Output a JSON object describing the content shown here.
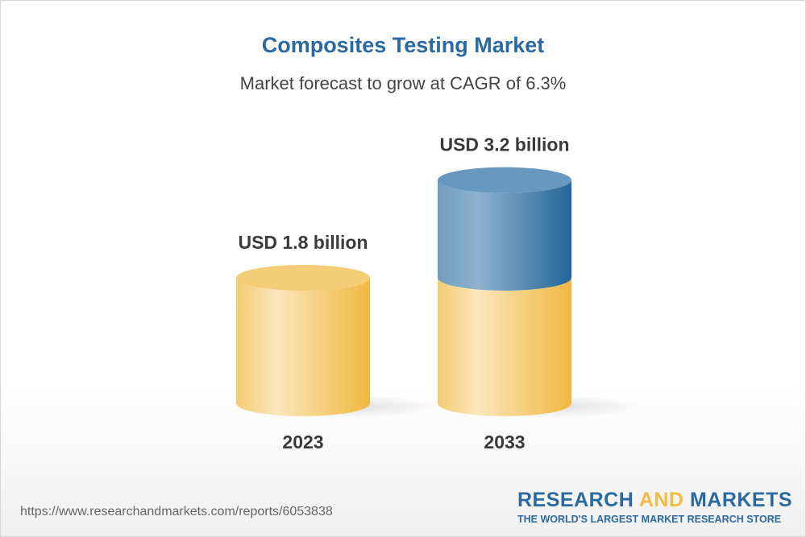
{
  "title": "Composites Testing Market",
  "subtitle": "Market forecast to grow at CAGR of 6.3%",
  "chart_data": {
    "type": "bar",
    "style": "3d-cylinder",
    "categories": [
      "2023",
      "2033"
    ],
    "values": [
      1.8,
      3.2
    ],
    "data_labels": [
      "USD 1.8 billion",
      "USD 3.2 billion"
    ],
    "colors": {
      "base": "#f2bc45",
      "growth": "#2a6aa0"
    }
  },
  "footer": {
    "url": "https://www.researchandmarkets.com/reports/6053838",
    "logo_part1": "RESEARCH ",
    "logo_part2": "AND",
    "logo_part3": " MARKETS",
    "tagline": "THE WORLD'S LARGEST MARKET RESEARCH STORE"
  }
}
